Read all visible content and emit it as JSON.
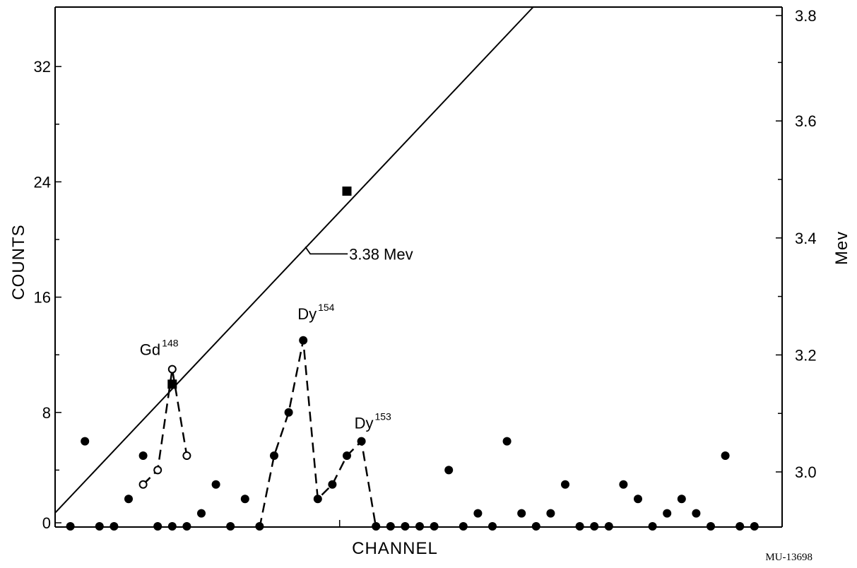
{
  "chart_data": {
    "type": "scatter",
    "xlabel": "CHANNEL",
    "ylabel": "COUNTS",
    "y2label": "Mev",
    "xlim": [
      0,
      49
    ],
    "ylim": [
      0,
      36
    ],
    "y_ticks": [
      0,
      8,
      16,
      24,
      32
    ],
    "y_minor_ticks": [
      4,
      12,
      20,
      28
    ],
    "y2lim": [
      2.88,
      3.8
    ],
    "y2_ticks": [
      "3.0",
      "3.2",
      "3.4",
      "3.6",
      "3.8"
    ],
    "y2_tick_values": [
      3.0,
      3.2,
      3.4,
      3.6,
      3.8
    ],
    "y2_minor_ticks": [
      3.1,
      3.3,
      3.5,
      3.7
    ],
    "x_ticks": [
      19.5
    ],
    "grid": false,
    "series": [
      {
        "style": "filled-circles",
        "points": [
          [
            1,
            0
          ],
          [
            2,
            6
          ],
          [
            3,
            0
          ],
          [
            4,
            0
          ],
          [
            5,
            2
          ],
          [
            6,
            5
          ],
          [
            7,
            0
          ],
          [
            8,
            0
          ],
          [
            9,
            0
          ],
          [
            10,
            1
          ],
          [
            11,
            3
          ],
          [
            12,
            0
          ],
          [
            13,
            2
          ],
          [
            14,
            0
          ],
          [
            15,
            5
          ],
          [
            16,
            8
          ],
          [
            17,
            13
          ],
          [
            18,
            2
          ],
          [
            19,
            3
          ],
          [
            20,
            5
          ],
          [
            21,
            6
          ],
          [
            22,
            0
          ],
          [
            23,
            0
          ],
          [
            24,
            0
          ],
          [
            25,
            0
          ],
          [
            26,
            0
          ],
          [
            27,
            4
          ],
          [
            28,
            0
          ],
          [
            29,
            1
          ],
          [
            30,
            0
          ],
          [
            31,
            6
          ],
          [
            32,
            1
          ],
          [
            33,
            0
          ],
          [
            34,
            1
          ],
          [
            35,
            3
          ],
          [
            36,
            0
          ],
          [
            37,
            0
          ],
          [
            38,
            0
          ],
          [
            39,
            3
          ],
          [
            40,
            2
          ],
          [
            41,
            0
          ],
          [
            42,
            1
          ],
          [
            43,
            2
          ],
          [
            44,
            1
          ],
          [
            45,
            0
          ],
          [
            46,
            5
          ],
          [
            47,
            0
          ],
          [
            48,
            0
          ]
        ]
      },
      {
        "style": "open-circles",
        "points": [
          [
            6,
            3
          ],
          [
            7,
            4
          ],
          [
            8,
            11
          ],
          [
            9,
            5
          ]
        ]
      }
    ],
    "dashed_peaks": [
      [
        [
          6,
          3
        ],
        [
          7,
          4
        ],
        [
          8,
          11
        ],
        [
          9,
          5
        ]
      ],
      [
        [
          14,
          0
        ],
        [
          15,
          5
        ],
        [
          16,
          8
        ],
        [
          17,
          13
        ],
        [
          18,
          2
        ],
        [
          19,
          3
        ],
        [
          20,
          5
        ],
        [
          21,
          6
        ],
        [
          22,
          0
        ]
      ]
    ],
    "calibration_line": {
      "unit": "Mev",
      "from": [
        0,
        2.93
      ],
      "to": [
        33,
        3.8
      ],
      "markers": [
        [
          8,
          3.15
        ],
        [
          20,
          3.48
        ]
      ]
    },
    "annotations": [
      {
        "base": "Gd",
        "sup": "148",
        "at": [
          8,
          11
        ]
      },
      {
        "base": "Dy",
        "sup": "154",
        "at": [
          17,
          13
        ]
      },
      {
        "base": "Dy",
        "sup": "153",
        "at": [
          21,
          6
        ]
      },
      {
        "text": "3.38 Mev",
        "pointer_at_mev": 3.38
      }
    ],
    "figure_id": "MU-13698"
  }
}
